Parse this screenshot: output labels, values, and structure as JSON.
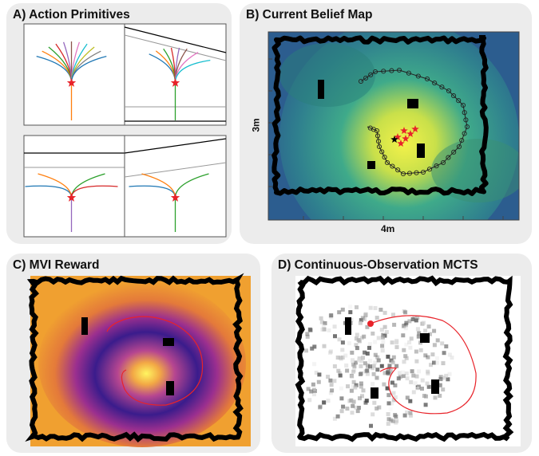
{
  "panels": {
    "a": {
      "title": "A) Action Primitives"
    },
    "b": {
      "title": "B) Current Belief Map",
      "x_label": "4m",
      "y_label": "3m"
    },
    "c": {
      "title": "C) MVI Reward"
    },
    "d": {
      "title": "D) Continuous-Observation MCTS"
    }
  },
  "colors": {
    "panel_bg": "#ececec",
    "wall": "#000000",
    "start_star": "#e8232a",
    "trajectory": "#222222",
    "planned_path": "#e8232a",
    "belief_low": "#2c5d8f",
    "belief_mid": "#3faa8a",
    "belief_high": "#f4f24a",
    "reward_low": "#f0a030",
    "reward_ring": "#3a1c8c",
    "reward_peak": "#fff560"
  },
  "icons": [
    "star-marker",
    "start-dot"
  ]
}
